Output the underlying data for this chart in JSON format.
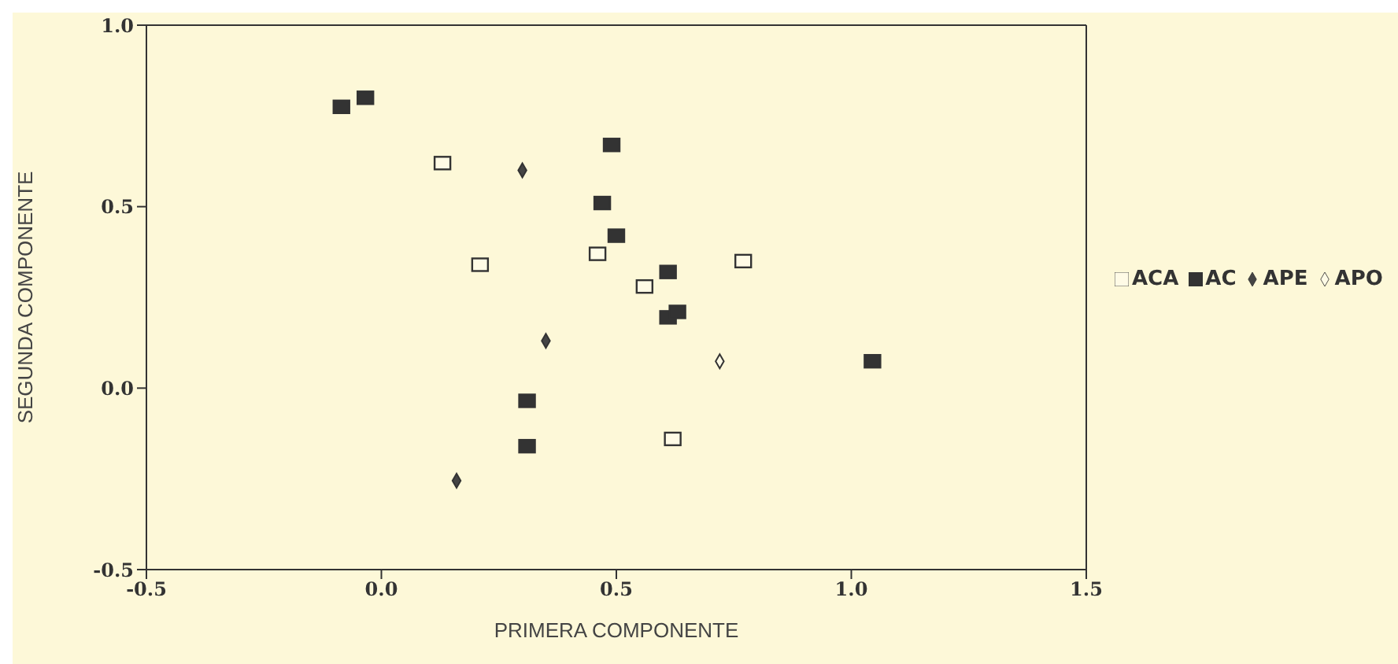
{
  "chart_data": {
    "type": "scatter",
    "xlabel": "PRIMERA COMPONENTE",
    "ylabel": "SEGUNDA COMPONENTE",
    "xlim": [
      -0.5,
      1.5
    ],
    "xticks": [
      {
        "value": -0.5,
        "label": "-0.5"
      },
      {
        "value": 0,
        "label": "0.0"
      },
      {
        "value": 0.5,
        "label": "0.5"
      },
      {
        "value": 1,
        "label": "1.0"
      },
      {
        "value": 1.5,
        "label": "1.5"
      }
    ],
    "ylim": [
      -0.5,
      1.0
    ],
    "yticks": [
      {
        "value": -0.5,
        "label": "-0.5"
      },
      {
        "value": 0,
        "label": "0.0"
      },
      {
        "value": 0.5,
        "label": "0.5"
      },
      {
        "value": 1,
        "label": "1.0"
      }
    ],
    "legend": "right",
    "series": [
      {
        "name": "ACA",
        "marker": "square",
        "color": "#fffbe6",
        "x": [
          0.13,
          0.21,
          0.46,
          0.56,
          0.77,
          0.62
        ],
        "values": [
          0.62,
          0.34,
          0.37,
          0.28,
          0.35,
          -0.14
        ]
      },
      {
        "name": "AC",
        "marker": "square",
        "color": "#333333",
        "x": [
          -0.085,
          -0.034,
          0.49,
          0.47,
          0.5,
          0.61,
          0.61,
          0.63,
          1.045,
          0.31,
          0.31
        ],
        "values": [
          0.775,
          0.8,
          0.67,
          0.51,
          0.42,
          0.32,
          0.195,
          0.21,
          0.074,
          -0.035,
          -0.16
        ]
      },
      {
        "name": "APE",
        "marker": "diamond",
        "color": "#444444",
        "x": [
          0.3,
          0.35,
          0.16
        ],
        "values": [
          0.6,
          0.13,
          -0.255
        ]
      },
      {
        "name": "APO",
        "marker": "diamond",
        "color": "#fffbe6",
        "x": [
          0.72
        ],
        "values": [
          0.074
        ]
      }
    ]
  }
}
